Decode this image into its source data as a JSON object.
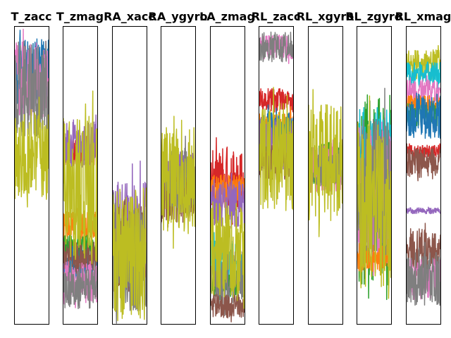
{
  "chart_data": {
    "type": "line",
    "ylim": [
      0,
      100
    ],
    "grid": false,
    "axis_ticks": "none",
    "series_colors": [
      "#1f77b4",
      "#ff7f0e",
      "#2ca02c",
      "#d62728",
      "#9467bd",
      "#8c564b",
      "#e377c2",
      "#7f7f7f",
      "#bcbd22",
      "#17becf"
    ],
    "panels": [
      {
        "title": "T_zacc",
        "series": [
          {
            "color": "#1f77b4",
            "center": 84,
            "amp": 24
          },
          {
            "color": "#e377c2",
            "center": 82,
            "amp": 26
          },
          {
            "color": "#7f7f7f",
            "center": 79,
            "amp": 32
          },
          {
            "color": "#bcbd22",
            "center": 56,
            "amp": 30
          }
        ]
      },
      {
        "title": "T_zmag",
        "series": [
          {
            "color": "#d62728",
            "center": 58,
            "amp": 10
          },
          {
            "color": "#9467bd",
            "center": 60,
            "amp": 16
          },
          {
            "color": "#ff7f0e",
            "center": 33,
            "amp": 10
          },
          {
            "color": "#2ca02c",
            "center": 26,
            "amp": 8
          },
          {
            "color": "#1f77b4",
            "center": 20,
            "amp": 10
          },
          {
            "color": "#8c564b",
            "center": 22,
            "amp": 12
          },
          {
            "color": "#e377c2",
            "center": 14,
            "amp": 14
          },
          {
            "color": "#7f7f7f",
            "center": 13,
            "amp": 16
          },
          {
            "color": "#bcbd22",
            "center": 45,
            "amp": 50
          }
        ]
      },
      {
        "title": "RA_xacc",
        "series": [
          {
            "color": "#9467bd",
            "center": 30,
            "amp": 36
          },
          {
            "color": "#8c564b",
            "center": 25,
            "amp": 30
          },
          {
            "color": "#7f7f7f",
            "center": 22,
            "amp": 36
          },
          {
            "color": "#bcbd22",
            "center": 24,
            "amp": 46
          }
        ]
      },
      {
        "title": "RA_ygyro",
        "series": [
          {
            "color": "#9467bd",
            "center": 50,
            "amp": 16
          },
          {
            "color": "#8c564b",
            "center": 44,
            "amp": 20
          },
          {
            "color": "#7f7f7f",
            "center": 48,
            "amp": 22
          },
          {
            "color": "#bcbd22",
            "center": 48,
            "amp": 36
          }
        ]
      },
      {
        "title": "LA_zmag",
        "series": [
          {
            "color": "#d62728",
            "center": 48,
            "amp": 22
          },
          {
            "color": "#ff7f0e",
            "center": 45,
            "amp": 10
          },
          {
            "color": "#9467bd",
            "center": 40,
            "amp": 16
          },
          {
            "color": "#17becf",
            "center": 20,
            "amp": 16
          },
          {
            "color": "#2ca02c",
            "center": 13,
            "amp": 8
          },
          {
            "color": "#7f7f7f",
            "center": 15,
            "amp": 20
          },
          {
            "color": "#8c564b",
            "center": 6,
            "amp": 8
          },
          {
            "color": "#bcbd22",
            "center": 25,
            "amp": 32
          }
        ]
      },
      {
        "title": "RL_zacc",
        "series": [
          {
            "color": "#e377c2",
            "center": 93,
            "amp": 8
          },
          {
            "color": "#7f7f7f",
            "center": 93,
            "amp": 10
          },
          {
            "color": "#d62728",
            "center": 75,
            "amp": 8
          },
          {
            "color": "#ff7f0e",
            "center": 66,
            "amp": 10
          },
          {
            "color": "#1f77b4",
            "center": 64,
            "amp": 14
          },
          {
            "color": "#9467bd",
            "center": 60,
            "amp": 18
          },
          {
            "color": "#8c564b",
            "center": 54,
            "amp": 12
          },
          {
            "color": "#bcbd22",
            "center": 56,
            "amp": 36
          }
        ]
      },
      {
        "title": "RL_xgyro",
        "series": [
          {
            "color": "#2ca02c",
            "center": 54,
            "amp": 14
          },
          {
            "color": "#e377c2",
            "center": 52,
            "amp": 16
          },
          {
            "color": "#7f7f7f",
            "center": 53,
            "amp": 14
          },
          {
            "color": "#bcbd22",
            "center": 54,
            "amp": 40
          }
        ]
      },
      {
        "title": "RL_zgyro",
        "series": [
          {
            "color": "#2ca02c",
            "center": 45,
            "amp": 64
          },
          {
            "color": "#17becf",
            "center": 58,
            "amp": 30
          },
          {
            "color": "#e377c2",
            "center": 44,
            "amp": 48
          },
          {
            "color": "#ff7f0e",
            "center": 22,
            "amp": 10
          },
          {
            "color": "#7f7f7f",
            "center": 45,
            "amp": 50
          },
          {
            "color": "#bcbd22",
            "center": 40,
            "amp": 56
          }
        ]
      },
      {
        "title": "RL_xmag",
        "series": [
          {
            "color": "#bcbd22",
            "center": 87,
            "amp": 10
          },
          {
            "color": "#17becf",
            "center": 84,
            "amp": 8
          },
          {
            "color": "#e377c2",
            "center": 78,
            "amp": 8
          },
          {
            "color": "#ff7f0e",
            "center": 74,
            "amp": 6
          },
          {
            "color": "#2ca02c",
            "center": 70,
            "amp": 8
          },
          {
            "color": "#1f77b4",
            "center": 70,
            "amp": 16
          },
          {
            "color": "#d62728",
            "center": 58,
            "amp": 4
          },
          {
            "color": "#8c564b",
            "center": 54,
            "amp": 10
          },
          {
            "color": "#9467bd",
            "center": 38,
            "amp": 2
          },
          {
            "color": "#8c564b",
            "center": 25,
            "amp": 14
          },
          {
            "color": "#e377c2",
            "center": 15,
            "amp": 14
          },
          {
            "color": "#7f7f7f",
            "center": 15,
            "amp": 18
          }
        ]
      }
    ]
  }
}
